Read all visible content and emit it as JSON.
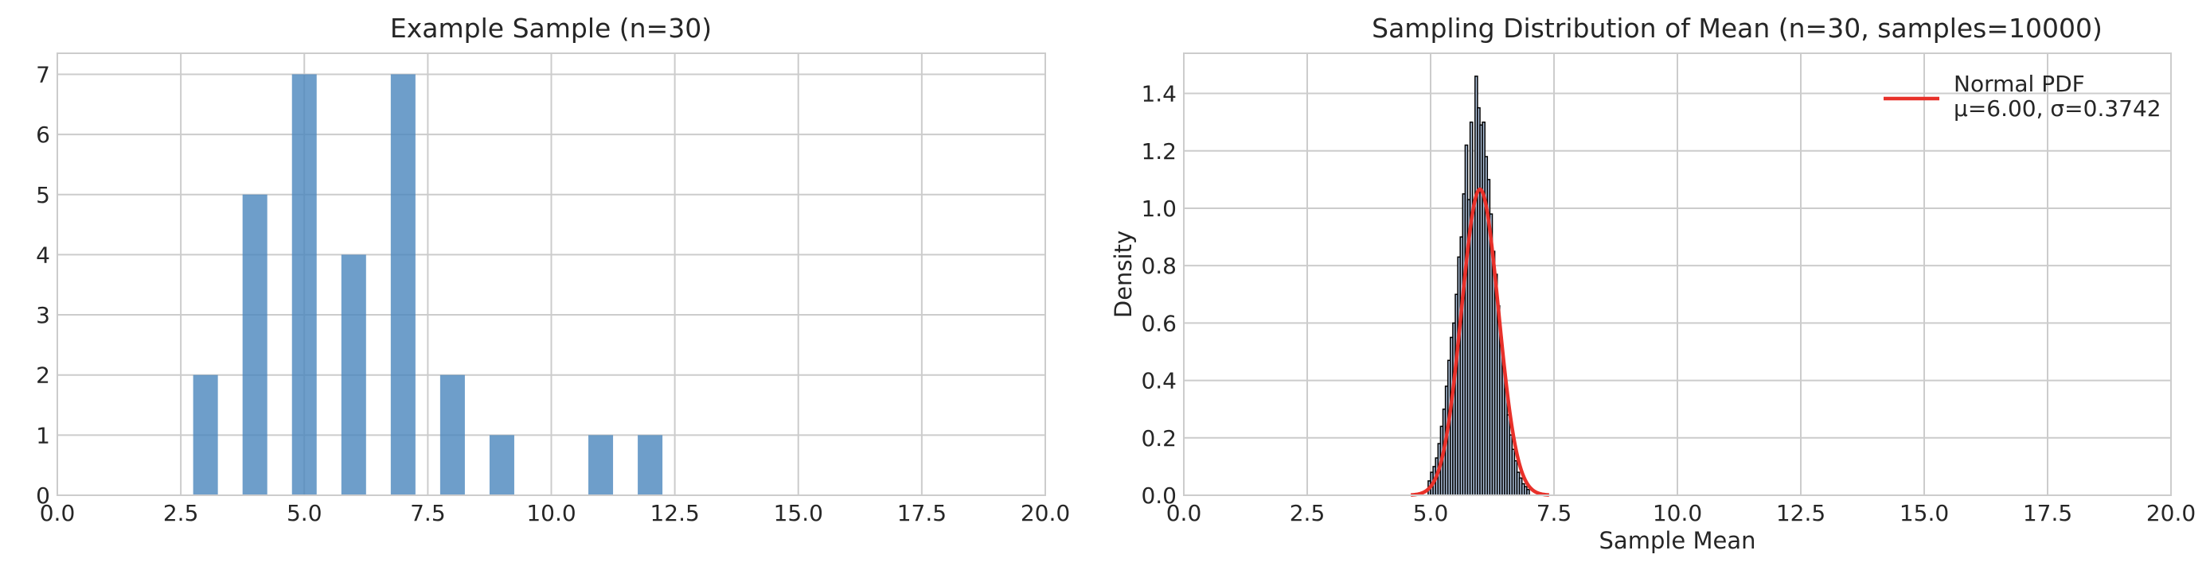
{
  "chart_data": [
    {
      "type": "bar",
      "title": "Example Sample (n=30)",
      "xlabel": "",
      "ylabel": "",
      "xlim": [
        0,
        20
      ],
      "ylim": [
        0,
        7.35
      ],
      "xticks": [
        "0.0",
        "2.5",
        "5.0",
        "7.5",
        "10.0",
        "12.5",
        "15.0",
        "17.5",
        "20.0"
      ],
      "yticks": [
        "0",
        "1",
        "2",
        "3",
        "4",
        "5",
        "6",
        "7"
      ],
      "grid": true,
      "bar_color": "#4a86bd",
      "categories": [
        3,
        4,
        5,
        6,
        7,
        8,
        9,
        11,
        12
      ],
      "values": [
        2,
        5,
        7,
        4,
        7,
        2,
        1,
        1,
        1
      ]
    },
    {
      "type": "bar",
      "title": "Sampling Distribution of Mean (n=30, samples=10000)",
      "xlabel": "Sample Mean",
      "ylabel": "Density",
      "xlim": [
        0,
        20
      ],
      "ylim": [
        0,
        1.54
      ],
      "xticks": [
        "0.0",
        "2.5",
        "5.0",
        "7.5",
        "10.0",
        "12.5",
        "15.0",
        "17.5",
        "20.0"
      ],
      "yticks": [
        "0.0",
        "0.2",
        "0.4",
        "0.6",
        "0.8",
        "1.0",
        "1.2",
        "1.4"
      ],
      "grid": true,
      "legend_position": "top-right",
      "bar_color": "#b0c4de",
      "bar_edge_color": "#000000",
      "line_color": "#e8312a",
      "bins": {
        "x": [
          4.975,
          5.025,
          5.075,
          5.125,
          5.175,
          5.225,
          5.275,
          5.325,
          5.375,
          5.425,
          5.475,
          5.525,
          5.575,
          5.625,
          5.675,
          5.725,
          5.775,
          5.825,
          5.875,
          5.925,
          5.975,
          6.025,
          6.075,
          6.125,
          6.175,
          6.225,
          6.275,
          6.325,
          6.375,
          6.425,
          6.475,
          6.525,
          6.575,
          6.625,
          6.675,
          6.725,
          6.775,
          6.825,
          6.875,
          6.925,
          6.975
        ],
        "density": [
          0.05,
          0.08,
          0.1,
          0.13,
          0.18,
          0.24,
          0.3,
          0.38,
          0.47,
          0.55,
          0.6,
          0.7,
          0.83,
          0.9,
          1.05,
          1.22,
          1.03,
          1.3,
          1.0,
          1.46,
          1.35,
          1.29,
          1.3,
          1.18,
          1.1,
          0.98,
          0.85,
          0.77,
          0.66,
          0.55,
          0.45,
          0.37,
          0.28,
          0.21,
          0.16,
          0.12,
          0.08,
          0.06,
          0.04,
          0.03,
          0.02
        ]
      },
      "series": [
        {
          "name": "Normal PDF\nμ=6.00, σ=0.3742",
          "kind": "line",
          "mu": 6.0,
          "sigma": 0.3742
        }
      ],
      "legend": {
        "line1": "Normal PDF",
        "line2": "μ=6.00, σ=0.3742"
      }
    }
  ]
}
